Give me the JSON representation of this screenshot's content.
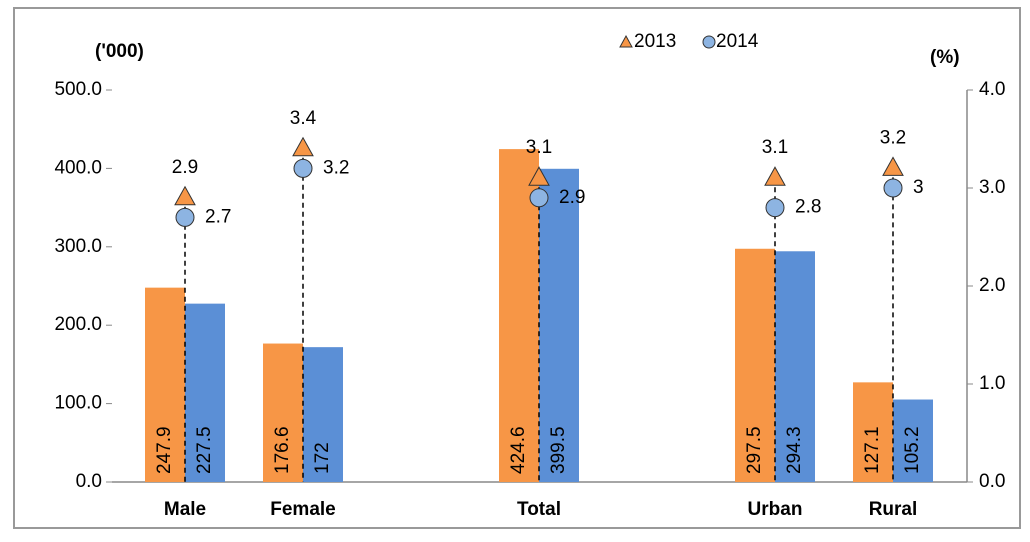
{
  "chart_data": {
    "type": "bar",
    "categories": [
      "Male",
      "Female",
      null,
      "Total",
      null,
      "Urban",
      "Rural"
    ],
    "y_label": "('000)",
    "y2_label": "(%)",
    "ylim": [
      0,
      500
    ],
    "yticks": [
      {
        "value": 0,
        "label": "0.0"
      },
      {
        "value": 100,
        "label": "100.0"
      },
      {
        "value": 200,
        "label": "200.0"
      },
      {
        "value": 300,
        "label": "300.0"
      },
      {
        "value": 400,
        "label": "400.0"
      },
      {
        "value": 500,
        "label": "500.0"
      }
    ],
    "y2lim": [
      0,
      4
    ],
    "y2ticks": [
      {
        "value": 0,
        "label": "0.0"
      },
      {
        "value": 1,
        "label": "1.0"
      },
      {
        "value": 2,
        "label": "2.0"
      },
      {
        "value": 3,
        "label": "3.0"
      },
      {
        "value": 4,
        "label": "4.0"
      }
    ],
    "series": [
      {
        "name": "2013",
        "color": "#f79646",
        "values": [
          247.9,
          176.6,
          null,
          424.6,
          null,
          297.5,
          127.1
        ]
      },
      {
        "name": "2014",
        "color": "#5b8fd6",
        "values": [
          227.5,
          172.0,
          null,
          399.5,
          null,
          294.3,
          105.2
        ]
      },
      {
        "name": "2013",
        "color": "#f79646",
        "axis": "y2",
        "marker": "triangle",
        "values": [
          2.9,
          3.4,
          null,
          3.1,
          null,
          3.1,
          3.2
        ]
      },
      {
        "name": "2014",
        "color": "#8db4e2",
        "axis": "y2",
        "marker": "circle",
        "values": [
          2.7,
          3.2,
          null,
          2.9,
          null,
          2.8,
          3.0
        ]
      }
    ]
  }
}
